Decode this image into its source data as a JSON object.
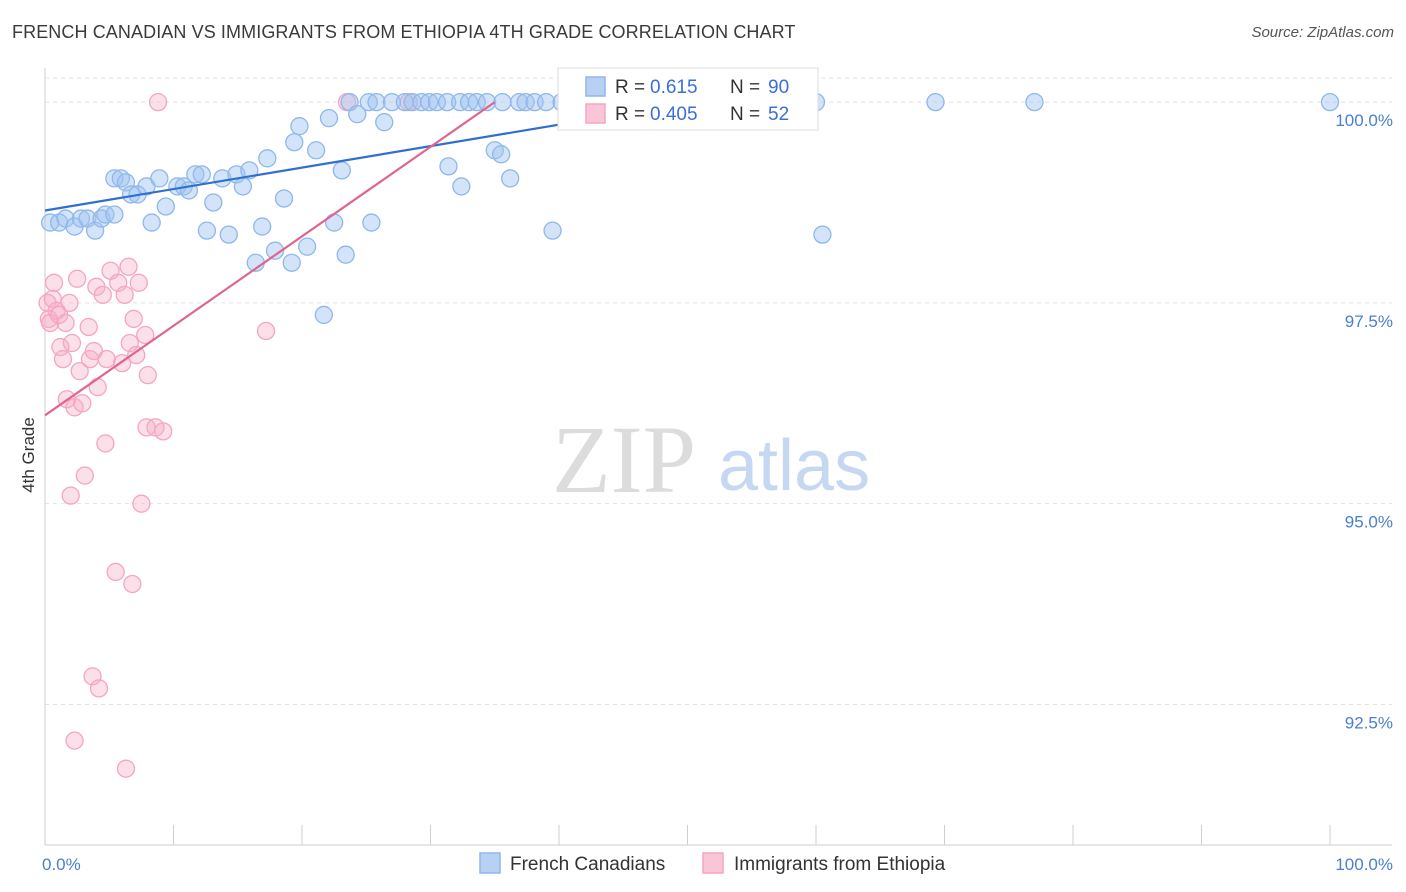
{
  "header": {
    "title": "FRENCH CANADIAN VS IMMIGRANTS FROM ETHIOPIA 4TH GRADE CORRELATION CHART",
    "source": "Source: ZipAtlas.com"
  },
  "watermark": {
    "zip": "ZIP",
    "atlas": "atlas"
  },
  "chart_data": {
    "type": "scatter",
    "title": "FRENCH CANADIAN VS IMMIGRANTS FROM ETHIOPIA 4TH GRADE CORRELATION CHART",
    "xlabel": "",
    "ylabel": "4th Grade",
    "xlim": [
      0,
      100
    ],
    "ylim": [
      90.75,
      100.3
    ],
    "x_tick_labels": [
      {
        "value": 0,
        "label": "0.0%"
      },
      {
        "value": 100,
        "label": "100.0%"
      }
    ],
    "y_ticks": [
      {
        "value": 92.5,
        "label": "92.5%"
      },
      {
        "value": 95.0,
        "label": "95.0%"
      },
      {
        "value": 97.5,
        "label": "97.5%"
      },
      {
        "value": 100.0,
        "label": "100.0%"
      }
    ],
    "grid": true,
    "legend": {
      "position": "top-center",
      "rows": [
        {
          "r_label": "R =",
          "r_value": "0.615",
          "n_label": "N =",
          "n_value": "90"
        },
        {
          "r_label": "R =",
          "r_value": "0.405",
          "n_label": "N =",
          "n_value": "52"
        }
      ]
    },
    "series": [
      {
        "name": "French Canadians",
        "color": "#8fb7ec",
        "line_color": "#2f6fd0",
        "trend": {
          "x": [
            0,
            58
          ],
          "y": [
            98.65,
            100.2
          ]
        },
        "points": [
          [
            0.4,
            98.5
          ],
          [
            1.1,
            98.5
          ],
          [
            1.6,
            98.55
          ],
          [
            2.3,
            98.45
          ],
          [
            2.8,
            98.55
          ],
          [
            3.3,
            98.55
          ],
          [
            3.9,
            98.4
          ],
          [
            4.4,
            98.55
          ],
          [
            4.7,
            98.6
          ],
          [
            5.4,
            98.6
          ],
          [
            5.4,
            99.05
          ],
          [
            5.9,
            99.05
          ],
          [
            6.3,
            99.0
          ],
          [
            6.7,
            98.85
          ],
          [
            7.2,
            98.85
          ],
          [
            7.9,
            98.95
          ],
          [
            8.3,
            98.5
          ],
          [
            8.9,
            99.05
          ],
          [
            9.4,
            98.7
          ],
          [
            10.3,
            98.95
          ],
          [
            10.8,
            98.95
          ],
          [
            11.2,
            98.9
          ],
          [
            11.7,
            99.1
          ],
          [
            12.2,
            99.1
          ],
          [
            12.6,
            98.4
          ],
          [
            13.1,
            98.75
          ],
          [
            13.8,
            99.05
          ],
          [
            14.3,
            98.35
          ],
          [
            14.9,
            99.1
          ],
          [
            15.4,
            98.95
          ],
          [
            15.9,
            99.15
          ],
          [
            16.4,
            98.0
          ],
          [
            16.9,
            98.45
          ],
          [
            17.3,
            99.3
          ],
          [
            17.9,
            98.15
          ],
          [
            18.6,
            98.8
          ],
          [
            19.2,
            98.0
          ],
          [
            19.4,
            99.5
          ],
          [
            19.8,
            99.7
          ],
          [
            20.4,
            98.2
          ],
          [
            21.1,
            99.4
          ],
          [
            21.7,
            97.35
          ],
          [
            22.1,
            99.8
          ],
          [
            22.5,
            98.5
          ],
          [
            23.1,
            99.15
          ],
          [
            23.4,
            98.1
          ],
          [
            23.7,
            100.0
          ],
          [
            24.3,
            99.85
          ],
          [
            25.2,
            100.0
          ],
          [
            25.4,
            98.5
          ],
          [
            25.8,
            100.0
          ],
          [
            26.4,
            99.75
          ],
          [
            27.0,
            100.0
          ],
          [
            28.0,
            100.0
          ],
          [
            28.6,
            100.0
          ],
          [
            29.3,
            100.0
          ],
          [
            29.9,
            100.0
          ],
          [
            30.5,
            100.0
          ],
          [
            31.3,
            100.0
          ],
          [
            31.4,
            99.2
          ],
          [
            32.3,
            100.0
          ],
          [
            32.4,
            98.95
          ],
          [
            33.0,
            100.0
          ],
          [
            33.6,
            100.0
          ],
          [
            34.4,
            100.0
          ],
          [
            35.0,
            99.4
          ],
          [
            35.5,
            99.35
          ],
          [
            35.6,
            100.0
          ],
          [
            36.2,
            99.05
          ],
          [
            36.9,
            100.0
          ],
          [
            37.4,
            100.0
          ],
          [
            38.1,
            100.0
          ],
          [
            39.0,
            100.0
          ],
          [
            39.5,
            98.4
          ],
          [
            40.2,
            100.0
          ],
          [
            41.4,
            100.0
          ],
          [
            42.0,
            100.0
          ],
          [
            43.2,
            100.0
          ],
          [
            45.2,
            100.0
          ],
          [
            46.7,
            100.0
          ],
          [
            49.7,
            100.0
          ],
          [
            52.0,
            100.0
          ],
          [
            55.1,
            100.0
          ],
          [
            56.2,
            100.0
          ],
          [
            58.4,
            100.0
          ],
          [
            60.0,
            100.0
          ],
          [
            60.5,
            98.35
          ],
          [
            69.3,
            100.0
          ],
          [
            77.0,
            100.0
          ],
          [
            100.0,
            100.0
          ]
        ]
      },
      {
        "name": "Immigrants from Ethiopia",
        "color": "#f4a6c0",
        "line_color": "#e0648e",
        "trend": {
          "x": [
            0,
            35
          ],
          "y": [
            96.1,
            100.0
          ]
        },
        "points": [
          [
            0.2,
            97.5
          ],
          [
            0.3,
            97.3
          ],
          [
            0.4,
            97.25
          ],
          [
            0.6,
            97.55
          ],
          [
            0.7,
            97.75
          ],
          [
            0.9,
            97.4
          ],
          [
            1.1,
            97.35
          ],
          [
            1.2,
            96.95
          ],
          [
            1.4,
            96.8
          ],
          [
            1.6,
            97.25
          ],
          [
            1.7,
            96.3
          ],
          [
            1.9,
            97.5
          ],
          [
            2.0,
            95.1
          ],
          [
            2.1,
            97.0
          ],
          [
            2.3,
            96.2
          ],
          [
            2.3,
            92.05
          ],
          [
            2.5,
            97.8
          ],
          [
            2.7,
            96.65
          ],
          [
            2.9,
            96.25
          ],
          [
            3.1,
            95.35
          ],
          [
            3.4,
            97.2
          ],
          [
            3.5,
            96.8
          ],
          [
            3.7,
            92.85
          ],
          [
            3.8,
            96.9
          ],
          [
            4.0,
            97.7
          ],
          [
            4.1,
            96.45
          ],
          [
            4.2,
            92.7
          ],
          [
            4.5,
            97.6
          ],
          [
            4.7,
            95.75
          ],
          [
            4.8,
            96.8
          ],
          [
            5.1,
            97.9
          ],
          [
            5.5,
            94.15
          ],
          [
            5.7,
            97.75
          ],
          [
            6.0,
            96.75
          ],
          [
            6.2,
            97.6
          ],
          [
            6.3,
            91.7
          ],
          [
            6.5,
            97.95
          ],
          [
            6.6,
            97.0
          ],
          [
            6.8,
            94.0
          ],
          [
            6.9,
            97.3
          ],
          [
            7.1,
            96.85
          ],
          [
            7.3,
            97.75
          ],
          [
            7.5,
            95.0
          ],
          [
            7.8,
            97.1
          ],
          [
            7.9,
            95.95
          ],
          [
            8.0,
            96.6
          ],
          [
            8.6,
            95.95
          ],
          [
            8.8,
            100.0
          ],
          [
            9.2,
            95.9
          ],
          [
            17.2,
            97.15
          ],
          [
            23.5,
            100.0
          ],
          [
            28.3,
            100.0
          ]
        ]
      }
    ]
  }
}
